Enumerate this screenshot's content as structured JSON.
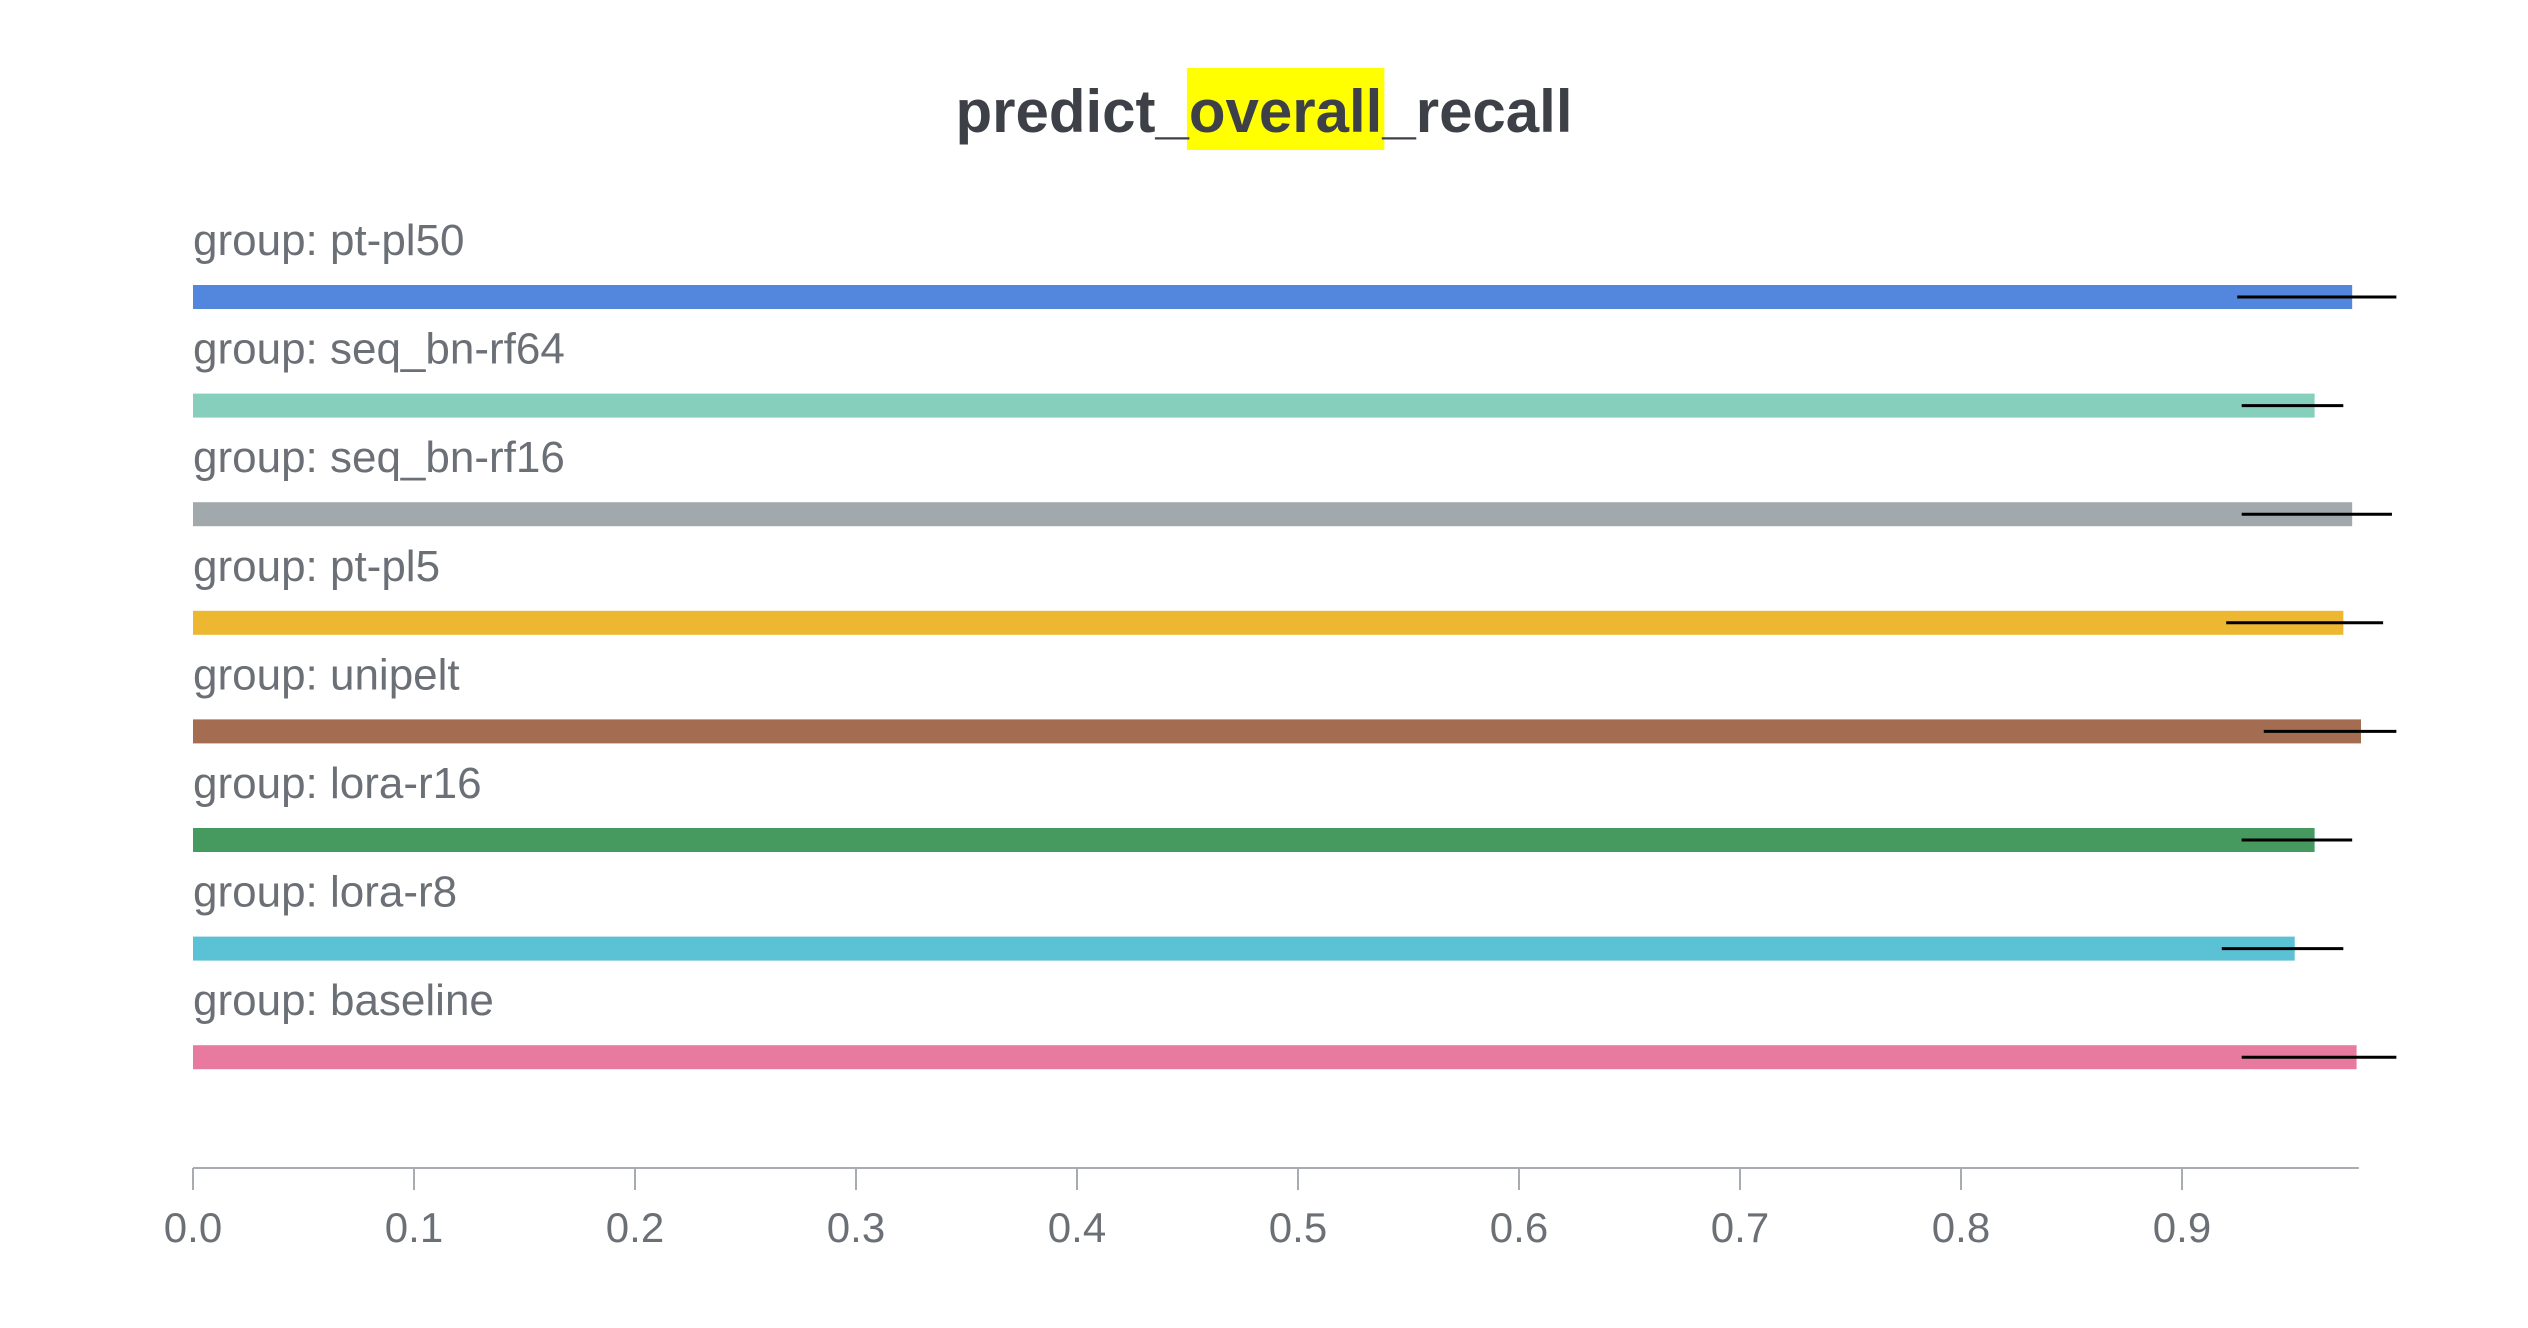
{
  "title": {
    "prefix": "predict_",
    "highlight": "overall",
    "suffix": "_recall",
    "highlight_color": "#ffff00"
  },
  "chart_data": {
    "type": "bar",
    "orientation": "horizontal",
    "title": "predict_overall_recall",
    "xlabel": "",
    "ylabel": "",
    "xlim": [
      0,
      0.98
    ],
    "xticks": [
      0.0,
      0.1,
      0.2,
      0.3,
      0.4,
      0.5,
      0.6,
      0.7,
      0.8,
      0.9
    ],
    "xtick_labels": [
      "0.0",
      "0.1",
      "0.2",
      "0.3",
      "0.4",
      "0.5",
      "0.6",
      "0.7",
      "0.8",
      "0.9"
    ],
    "grid": false,
    "legend": "none",
    "error_bars": true,
    "bars": [
      {
        "label": "group: pt-pl50",
        "value": 0.977,
        "err_low": 0.925,
        "err_high": 0.997,
        "color": "#5387dd"
      },
      {
        "label": "group: seq_bn-rf64",
        "value": 0.96,
        "err_low": 0.927,
        "err_high": 0.973,
        "color": "#86cfbc"
      },
      {
        "label": "group: seq_bn-rf16",
        "value": 0.977,
        "err_low": 0.927,
        "err_high": 0.995,
        "color": "#a1a9ad"
      },
      {
        "label": "group: pt-pl5",
        "value": 0.973,
        "err_low": 0.92,
        "err_high": 0.991,
        "color": "#edb732"
      },
      {
        "label": "group: unipelt",
        "value": 0.981,
        "err_low": 0.937,
        "err_high": 0.997,
        "color": "#a46c50"
      },
      {
        "label": "group: lora-r16",
        "value": 0.96,
        "err_low": 0.927,
        "err_high": 0.977,
        "color": "#479a5f"
      },
      {
        "label": "group: lora-r8",
        "value": 0.951,
        "err_low": 0.918,
        "err_high": 0.973,
        "color": "#5bc2d5"
      },
      {
        "label": "group: baseline",
        "value": 0.979,
        "err_low": 0.927,
        "err_high": 0.997,
        "color": "#e87aa0"
      }
    ]
  }
}
